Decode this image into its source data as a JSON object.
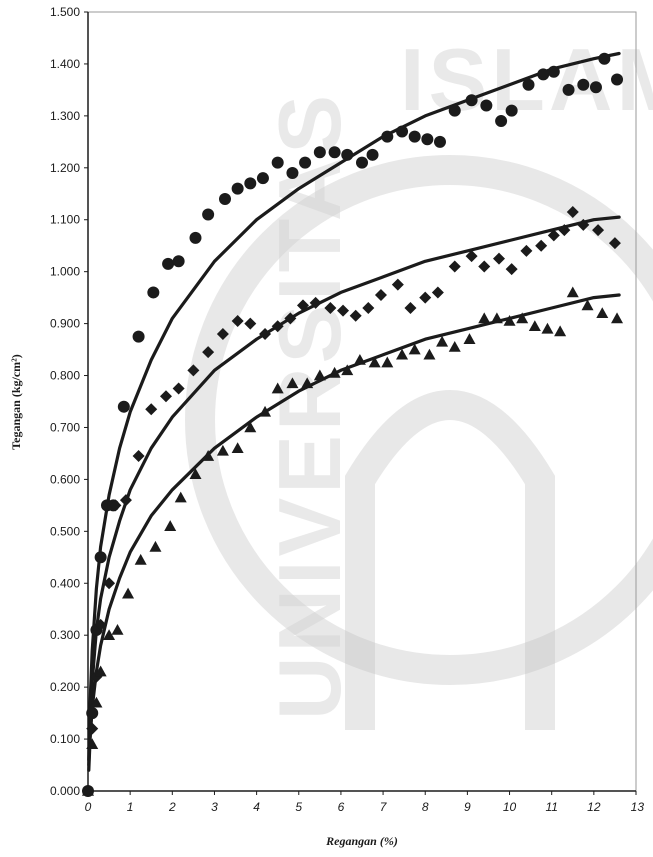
{
  "chart_data": {
    "type": "scatter",
    "title": "",
    "xlabel": "Regangan (%)",
    "ylabel": "Tegangan (kg/cm²)",
    "xlim": [
      0,
      13
    ],
    "ylim": [
      0,
      1.5
    ],
    "x_ticks": [
      0,
      1,
      2,
      3,
      4,
      5,
      6,
      7,
      8,
      9,
      10,
      11,
      12,
      13
    ],
    "x_tick_labels": [
      "0",
      "1",
      "2",
      "3",
      "4",
      "5",
      "6",
      "7",
      "8",
      "9",
      "10",
      "11",
      "12",
      "13"
    ],
    "y_ticks": [
      0,
      0.1,
      0.2,
      0.3,
      0.4,
      0.5,
      0.6,
      0.7,
      0.8,
      0.9,
      1.0,
      1.1,
      1.2,
      1.3,
      1.4,
      1.5
    ],
    "y_tick_labels": [
      "0.000",
      "0.100",
      "0.200",
      "0.300",
      "0.400",
      "0.500",
      "0.600",
      "0.700",
      "0.800",
      "0.900",
      "1.000",
      "1.100",
      "1.200",
      "1.300",
      "1.400",
      "1.500"
    ],
    "grid": false,
    "marker_color": "#1b1b1b",
    "series": [
      {
        "marker": "circle",
        "points": [
          [
            0.0,
            0.0
          ],
          [
            0.1,
            0.15
          ],
          [
            0.2,
            0.31
          ],
          [
            0.3,
            0.45
          ],
          [
            0.45,
            0.55
          ],
          [
            0.6,
            0.55
          ],
          [
            0.85,
            0.74
          ],
          [
            1.2,
            0.875
          ],
          [
            1.55,
            0.96
          ],
          [
            1.9,
            1.015
          ],
          [
            2.15,
            1.02
          ],
          [
            2.55,
            1.065
          ],
          [
            2.85,
            1.11
          ],
          [
            3.25,
            1.14
          ],
          [
            3.55,
            1.16
          ],
          [
            3.85,
            1.17
          ],
          [
            4.15,
            1.18
          ],
          [
            4.5,
            1.21
          ],
          [
            4.85,
            1.19
          ],
          [
            5.15,
            1.21
          ],
          [
            5.5,
            1.23
          ],
          [
            5.85,
            1.23
          ],
          [
            6.15,
            1.225
          ],
          [
            6.5,
            1.21
          ],
          [
            6.75,
            1.225
          ],
          [
            7.1,
            1.26
          ],
          [
            7.45,
            1.27
          ],
          [
            7.75,
            1.26
          ],
          [
            8.05,
            1.255
          ],
          [
            8.35,
            1.25
          ],
          [
            8.7,
            1.31
          ],
          [
            9.1,
            1.33
          ],
          [
            9.45,
            1.32
          ],
          [
            9.8,
            1.29
          ],
          [
            10.05,
            1.31
          ],
          [
            10.45,
            1.36
          ],
          [
            10.8,
            1.38
          ],
          [
            11.05,
            1.385
          ],
          [
            11.4,
            1.35
          ],
          [
            11.75,
            1.36
          ],
          [
            12.05,
            1.355
          ],
          [
            12.25,
            1.41
          ],
          [
            12.55,
            1.37
          ]
        ],
        "fit": [
          [
            0.02,
            0.06
          ],
          [
            0.05,
            0.17
          ],
          [
            0.1,
            0.27
          ],
          [
            0.2,
            0.39
          ],
          [
            0.3,
            0.47
          ],
          [
            0.5,
            0.57
          ],
          [
            0.75,
            0.66
          ],
          [
            1.0,
            0.73
          ],
          [
            1.5,
            0.83
          ],
          [
            2.0,
            0.91
          ],
          [
            3.0,
            1.02
          ],
          [
            4.0,
            1.1
          ],
          [
            5.0,
            1.16
          ],
          [
            6.0,
            1.21
          ],
          [
            7.0,
            1.26
          ],
          [
            8.0,
            1.3
          ],
          [
            9.0,
            1.33
          ],
          [
            10.0,
            1.36
          ],
          [
            11.0,
            1.39
          ],
          [
            12.0,
            1.41
          ],
          [
            12.6,
            1.42
          ]
        ]
      },
      {
        "marker": "diamond",
        "points": [
          [
            0.0,
            0.0
          ],
          [
            0.1,
            0.12
          ],
          [
            0.2,
            0.22
          ],
          [
            0.3,
            0.32
          ],
          [
            0.5,
            0.4
          ],
          [
            0.65,
            0.55
          ],
          [
            0.9,
            0.56
          ],
          [
            1.2,
            0.645
          ],
          [
            1.5,
            0.735
          ],
          [
            1.85,
            0.76
          ],
          [
            2.15,
            0.775
          ],
          [
            2.5,
            0.81
          ],
          [
            2.85,
            0.845
          ],
          [
            3.2,
            0.88
          ],
          [
            3.55,
            0.905
          ],
          [
            3.85,
            0.9
          ],
          [
            4.2,
            0.88
          ],
          [
            4.5,
            0.895
          ],
          [
            4.8,
            0.91
          ],
          [
            5.1,
            0.935
          ],
          [
            5.4,
            0.94
          ],
          [
            5.75,
            0.93
          ],
          [
            6.05,
            0.925
          ],
          [
            6.35,
            0.915
          ],
          [
            6.65,
            0.93
          ],
          [
            6.95,
            0.955
          ],
          [
            7.35,
            0.975
          ],
          [
            7.65,
            0.93
          ],
          [
            8.0,
            0.95
          ],
          [
            8.3,
            0.96
          ],
          [
            8.7,
            1.01
          ],
          [
            9.1,
            1.03
          ],
          [
            9.4,
            1.01
          ],
          [
            9.75,
            1.025
          ],
          [
            10.05,
            1.005
          ],
          [
            10.4,
            1.04
          ],
          [
            10.75,
            1.05
          ],
          [
            11.05,
            1.07
          ],
          [
            11.3,
            1.08
          ],
          [
            11.5,
            1.115
          ],
          [
            11.75,
            1.09
          ],
          [
            12.1,
            1.08
          ],
          [
            12.5,
            1.055
          ]
        ],
        "fit": [
          [
            0.02,
            0.05
          ],
          [
            0.05,
            0.13
          ],
          [
            0.1,
            0.21
          ],
          [
            0.2,
            0.31
          ],
          [
            0.3,
            0.37
          ],
          [
            0.5,
            0.45
          ],
          [
            0.75,
            0.52
          ],
          [
            1.0,
            0.58
          ],
          [
            1.5,
            0.66
          ],
          [
            2.0,
            0.72
          ],
          [
            3.0,
            0.81
          ],
          [
            4.0,
            0.87
          ],
          [
            5.0,
            0.92
          ],
          [
            6.0,
            0.96
          ],
          [
            7.0,
            0.99
          ],
          [
            8.0,
            1.02
          ],
          [
            9.0,
            1.04
          ],
          [
            10.0,
            1.06
          ],
          [
            11.0,
            1.08
          ],
          [
            12.0,
            1.1
          ],
          [
            12.6,
            1.105
          ]
        ]
      },
      {
        "marker": "triangle",
        "points": [
          [
            0.0,
            0.0
          ],
          [
            0.1,
            0.09
          ],
          [
            0.2,
            0.17
          ],
          [
            0.3,
            0.23
          ],
          [
            0.5,
            0.3
          ],
          [
            0.7,
            0.31
          ],
          [
            0.95,
            0.38
          ],
          [
            1.25,
            0.445
          ],
          [
            1.6,
            0.47
          ],
          [
            1.95,
            0.51
          ],
          [
            2.2,
            0.565
          ],
          [
            2.55,
            0.61
          ],
          [
            2.85,
            0.645
          ],
          [
            3.2,
            0.655
          ],
          [
            3.55,
            0.66
          ],
          [
            3.85,
            0.7
          ],
          [
            4.2,
            0.73
          ],
          [
            4.5,
            0.775
          ],
          [
            4.85,
            0.785
          ],
          [
            5.2,
            0.785
          ],
          [
            5.5,
            0.8
          ],
          [
            5.85,
            0.805
          ],
          [
            6.15,
            0.81
          ],
          [
            6.45,
            0.83
          ],
          [
            6.8,
            0.825
          ],
          [
            7.1,
            0.825
          ],
          [
            7.45,
            0.84
          ],
          [
            7.75,
            0.85
          ],
          [
            8.1,
            0.84
          ],
          [
            8.4,
            0.865
          ],
          [
            8.7,
            0.855
          ],
          [
            9.05,
            0.87
          ],
          [
            9.4,
            0.91
          ],
          [
            9.7,
            0.91
          ],
          [
            10.0,
            0.905
          ],
          [
            10.3,
            0.91
          ],
          [
            10.6,
            0.895
          ],
          [
            10.9,
            0.89
          ],
          [
            11.2,
            0.885
          ],
          [
            11.5,
            0.96
          ],
          [
            11.85,
            0.935
          ],
          [
            12.2,
            0.92
          ],
          [
            12.55,
            0.91
          ]
        ],
        "fit": [
          [
            0.02,
            0.04
          ],
          [
            0.05,
            0.1
          ],
          [
            0.1,
            0.16
          ],
          [
            0.2,
            0.23
          ],
          [
            0.3,
            0.28
          ],
          [
            0.5,
            0.35
          ],
          [
            0.75,
            0.41
          ],
          [
            1.0,
            0.46
          ],
          [
            1.5,
            0.53
          ],
          [
            2.0,
            0.58
          ],
          [
            3.0,
            0.66
          ],
          [
            4.0,
            0.72
          ],
          [
            5.0,
            0.77
          ],
          [
            6.0,
            0.81
          ],
          [
            7.0,
            0.84
          ],
          [
            8.0,
            0.87
          ],
          [
            9.0,
            0.89
          ],
          [
            10.0,
            0.91
          ],
          [
            11.0,
            0.93
          ],
          [
            12.0,
            0.95
          ],
          [
            12.6,
            0.955
          ]
        ]
      }
    ]
  }
}
